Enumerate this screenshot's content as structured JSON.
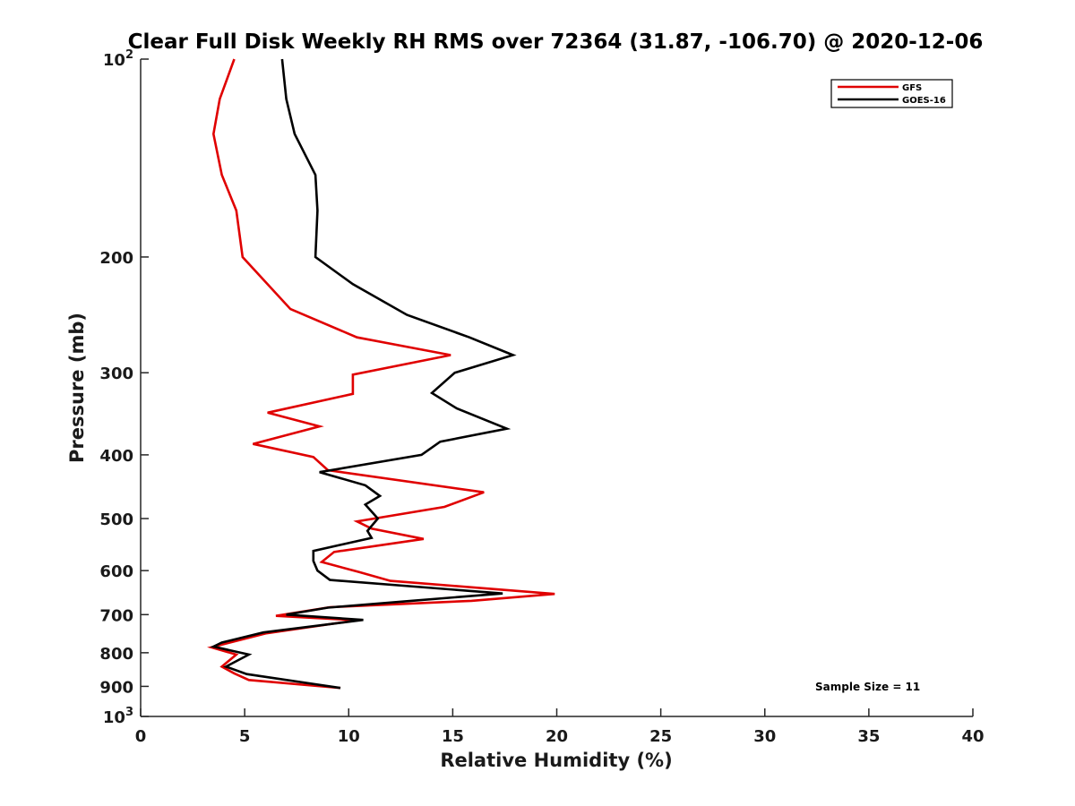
{
  "chart_data": {
    "type": "line",
    "title": "Clear Full Disk Weekly RH RMS over 72364 (31.87, -106.70) @ 2020-12-06",
    "xlabel": "Relative Humidity (%)",
    "ylabel": "Pressure (mb)",
    "xlim": [
      0,
      40
    ],
    "ylim": [
      100,
      1000
    ],
    "y_scale": "log",
    "y_reversed": true,
    "x_ticks": [
      0,
      5,
      10,
      15,
      20,
      25,
      30,
      35,
      40
    ],
    "x_tick_labels": [
      "0",
      "5",
      "10",
      "15",
      "20",
      "25",
      "30",
      "35",
      "40"
    ],
    "y_ticks": [
      100,
      200,
      300,
      400,
      500,
      600,
      700,
      800,
      900,
      1000
    ],
    "y_tick_labels": [
      {
        "base": "10",
        "exp": "2"
      },
      {
        "base": "200",
        "exp": ""
      },
      {
        "base": "300",
        "exp": ""
      },
      {
        "base": "400",
        "exp": ""
      },
      {
        "base": "500",
        "exp": ""
      },
      {
        "base": "600",
        "exp": ""
      },
      {
        "base": "700",
        "exp": ""
      },
      {
        "base": "800",
        "exp": ""
      },
      {
        "base": "900",
        "exp": ""
      },
      {
        "base": "10",
        "exp": "3"
      }
    ],
    "grid": false,
    "legend_position": "top-right",
    "annotation": "Sample Size = 11",
    "series": [
      {
        "name": "GFS",
        "color": "#e00000",
        "points": [
          [
            4.5,
            100
          ],
          [
            3.8,
            115
          ],
          [
            3.5,
            130
          ],
          [
            3.9,
            150
          ],
          [
            4.6,
            170
          ],
          [
            4.9,
            200
          ],
          [
            7.2,
            240
          ],
          [
            10.4,
            265
          ],
          [
            14.9,
            282
          ],
          [
            10.2,
            302
          ],
          [
            10.2,
            323
          ],
          [
            6.1,
            345
          ],
          [
            8.6,
            362
          ],
          [
            5.4,
            385
          ],
          [
            8.3,
            403
          ],
          [
            9.0,
            422
          ],
          [
            16.5,
            456
          ],
          [
            14.6,
            480
          ],
          [
            10.4,
            505
          ],
          [
            11.1,
            518
          ],
          [
            13.6,
            537
          ],
          [
            9.3,
            562
          ],
          [
            8.7,
            582
          ],
          [
            10.5,
            603
          ],
          [
            12.0,
            622
          ],
          [
            19.9,
            651
          ],
          [
            15.9,
            667
          ],
          [
            9.1,
            682
          ],
          [
            6.5,
            703
          ],
          [
            10.4,
            714
          ],
          [
            6.0,
            748
          ],
          [
            3.4,
            785
          ],
          [
            4.6,
            805
          ],
          [
            3.9,
            840
          ],
          [
            4.5,
            860
          ],
          [
            5.2,
            880
          ],
          [
            9.6,
            905
          ]
        ]
      },
      {
        "name": "GOES-16",
        "color": "#000000",
        "points": [
          [
            6.8,
            100
          ],
          [
            7.0,
            115
          ],
          [
            7.4,
            130
          ],
          [
            8.4,
            150
          ],
          [
            8.5,
            170
          ],
          [
            8.4,
            200
          ],
          [
            10.2,
            220
          ],
          [
            12.8,
            245
          ],
          [
            15.8,
            265
          ],
          [
            17.9,
            282
          ],
          [
            15.1,
            300
          ],
          [
            14.0,
            322
          ],
          [
            15.2,
            340
          ],
          [
            17.6,
            365
          ],
          [
            14.4,
            382
          ],
          [
            13.5,
            400
          ],
          [
            8.6,
            425
          ],
          [
            10.8,
            445
          ],
          [
            11.5,
            462
          ],
          [
            10.8,
            476
          ],
          [
            11.4,
            500
          ],
          [
            10.9,
            522
          ],
          [
            11.1,
            535
          ],
          [
            8.3,
            560
          ],
          [
            8.3,
            580
          ],
          [
            8.5,
            600
          ],
          [
            9.1,
            620
          ],
          [
            17.4,
            650
          ],
          [
            13.0,
            667
          ],
          [
            9.0,
            683
          ],
          [
            7.0,
            700
          ],
          [
            10.7,
            713
          ],
          [
            5.9,
            745
          ],
          [
            3.9,
            772
          ],
          [
            3.5,
            783
          ],
          [
            5.2,
            805
          ],
          [
            4.1,
            840
          ],
          [
            5.1,
            862
          ],
          [
            9.6,
            905
          ]
        ]
      }
    ]
  }
}
